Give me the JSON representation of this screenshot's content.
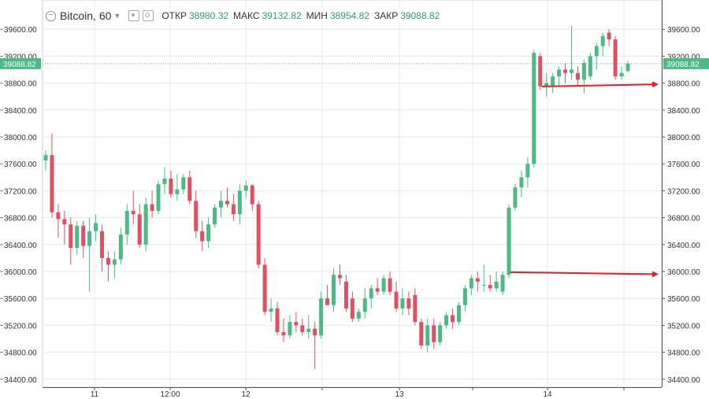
{
  "symbol": "Bitcoin",
  "interval": "60",
  "ohlc": [
    {
      "label": "ОТКР",
      "value": "38980.32"
    },
    {
      "label": "МАКС",
      "value": "39132.82"
    },
    {
      "label": "МИН",
      "value": "38954.82"
    },
    {
      "label": "ЗАКР",
      "value": "39088.82"
    }
  ],
  "colors": {
    "up": "#4bba84",
    "down": "#e05063",
    "arrow": "#e31e24",
    "price_tag": "#4bba84",
    "grid": "#e3e9ef",
    "axis_text": "#333333"
  },
  "chart_data": {
    "type": "candlestick",
    "y_range": [
      34200,
      39800
    ],
    "y_ticks": [
      "34400.00",
      "34800.00",
      "35200.00",
      "35600.00",
      "36000.00",
      "36400.00",
      "36800.00",
      "37200.00",
      "37600.00",
      "38000.00",
      "38400.00",
      "38800.00",
      "39200.00",
      "39600.00"
    ],
    "x_labels": [
      "11",
      "12:00",
      "12",
      "13",
      "14"
    ],
    "last_price": "39088.82",
    "grid": true,
    "candles": [
      {
        "o": 37650,
        "h": 37800,
        "l": 37500,
        "c": 37730
      },
      {
        "o": 37730,
        "h": 38050,
        "l": 36800,
        "c": 36880
      },
      {
        "o": 36880,
        "h": 37000,
        "l": 36500,
        "c": 36780
      },
      {
        "o": 36780,
        "h": 36900,
        "l": 36400,
        "c": 36700
      },
      {
        "o": 36700,
        "h": 36800,
        "l": 36100,
        "c": 36350
      },
      {
        "o": 36350,
        "h": 36750,
        "l": 36250,
        "c": 36680
      },
      {
        "o": 36680,
        "h": 36750,
        "l": 36200,
        "c": 36380
      },
      {
        "o": 36380,
        "h": 36800,
        "l": 35700,
        "c": 36600
      },
      {
        "o": 36600,
        "h": 36850,
        "l": 36450,
        "c": 36720
      },
      {
        "o": 36600,
        "h": 36700,
        "l": 36000,
        "c": 36200
      },
      {
        "o": 36200,
        "h": 36300,
        "l": 35850,
        "c": 36100
      },
      {
        "o": 36100,
        "h": 36300,
        "l": 35900,
        "c": 36180
      },
      {
        "o": 36180,
        "h": 36650,
        "l": 36100,
        "c": 36550
      },
      {
        "o": 36550,
        "h": 37000,
        "l": 36400,
        "c": 36900
      },
      {
        "o": 36900,
        "h": 37200,
        "l": 36700,
        "c": 36850
      },
      {
        "o": 36850,
        "h": 37000,
        "l": 36350,
        "c": 36400
      },
      {
        "o": 36400,
        "h": 37100,
        "l": 36300,
        "c": 37000
      },
      {
        "o": 37000,
        "h": 37200,
        "l": 36800,
        "c": 36900
      },
      {
        "o": 36900,
        "h": 37350,
        "l": 36850,
        "c": 37300
      },
      {
        "o": 37300,
        "h": 37550,
        "l": 37150,
        "c": 37380
      },
      {
        "o": 37380,
        "h": 37500,
        "l": 37100,
        "c": 37150
      },
      {
        "o": 37150,
        "h": 37450,
        "l": 37050,
        "c": 37220
      },
      {
        "o": 37220,
        "h": 37450,
        "l": 37150,
        "c": 37400
      },
      {
        "o": 37400,
        "h": 37500,
        "l": 37000,
        "c": 37050
      },
      {
        "o": 37050,
        "h": 37200,
        "l": 36500,
        "c": 36600
      },
      {
        "o": 36600,
        "h": 36750,
        "l": 36300,
        "c": 36450
      },
      {
        "o": 36450,
        "h": 36800,
        "l": 36350,
        "c": 36700
      },
      {
        "o": 36700,
        "h": 37000,
        "l": 36650,
        "c": 36950
      },
      {
        "o": 36950,
        "h": 37200,
        "l": 36800,
        "c": 37050
      },
      {
        "o": 37050,
        "h": 37250,
        "l": 36950,
        "c": 37000
      },
      {
        "o": 37000,
        "h": 37150,
        "l": 36750,
        "c": 36850
      },
      {
        "o": 36850,
        "h": 37300,
        "l": 36700,
        "c": 37200
      },
      {
        "o": 37200,
        "h": 37350,
        "l": 37100,
        "c": 37280
      },
      {
        "o": 37280,
        "h": 37300,
        "l": 36900,
        "c": 37000
      },
      {
        "o": 37000,
        "h": 37050,
        "l": 36050,
        "c": 36100
      },
      {
        "o": 36100,
        "h": 36200,
        "l": 35350,
        "c": 35400
      },
      {
        "o": 35400,
        "h": 35600,
        "l": 35250,
        "c": 35450
      },
      {
        "o": 35450,
        "h": 35550,
        "l": 35050,
        "c": 35100
      },
      {
        "o": 35100,
        "h": 35300,
        "l": 34950,
        "c": 35050
      },
      {
        "o": 35050,
        "h": 35350,
        "l": 35000,
        "c": 35250
      },
      {
        "o": 35250,
        "h": 35400,
        "l": 35100,
        "c": 35200
      },
      {
        "o": 35200,
        "h": 35300,
        "l": 35050,
        "c": 35100
      },
      {
        "o": 35100,
        "h": 35350,
        "l": 35000,
        "c": 35150
      },
      {
        "o": 35150,
        "h": 35250,
        "l": 34550,
        "c": 35050
      },
      {
        "o": 35050,
        "h": 35700,
        "l": 35000,
        "c": 35600
      },
      {
        "o": 35600,
        "h": 35800,
        "l": 35500,
        "c": 35500
      },
      {
        "o": 35500,
        "h": 36050,
        "l": 35400,
        "c": 35950
      },
      {
        "o": 35950,
        "h": 36100,
        "l": 35800,
        "c": 35900
      },
      {
        "o": 35850,
        "h": 35950,
        "l": 35400,
        "c": 35450
      },
      {
        "o": 35600,
        "h": 35700,
        "l": 35250,
        "c": 35300
      },
      {
        "o": 35300,
        "h": 35450,
        "l": 35250,
        "c": 35400
      },
      {
        "o": 35400,
        "h": 35750,
        "l": 35300,
        "c": 35600
      },
      {
        "o": 35600,
        "h": 35800,
        "l": 35450,
        "c": 35750
      },
      {
        "o": 35750,
        "h": 35900,
        "l": 35650,
        "c": 35700
      },
      {
        "o": 35700,
        "h": 35950,
        "l": 35650,
        "c": 35900
      },
      {
        "o": 35900,
        "h": 36000,
        "l": 35650,
        "c": 35700
      },
      {
        "o": 35700,
        "h": 35850,
        "l": 35400,
        "c": 35450
      },
      {
        "o": 35450,
        "h": 35750,
        "l": 35350,
        "c": 35600
      },
      {
        "o": 35600,
        "h": 35700,
        "l": 35350,
        "c": 35450
      },
      {
        "o": 35650,
        "h": 35750,
        "l": 35200,
        "c": 35250
      },
      {
        "o": 35250,
        "h": 35300,
        "l": 34850,
        "c": 34900
      },
      {
        "o": 34900,
        "h": 35300,
        "l": 34800,
        "c": 35200
      },
      {
        "o": 35200,
        "h": 35300,
        "l": 34850,
        "c": 34950
      },
      {
        "o": 34950,
        "h": 35250,
        "l": 34900,
        "c": 35200
      },
      {
        "o": 35200,
        "h": 35400,
        "l": 35150,
        "c": 35350
      },
      {
        "o": 35350,
        "h": 35450,
        "l": 35150,
        "c": 35250
      },
      {
        "o": 35250,
        "h": 35550,
        "l": 35200,
        "c": 35500
      },
      {
        "o": 35500,
        "h": 35800,
        "l": 35400,
        "c": 35750
      },
      {
        "o": 35750,
        "h": 35950,
        "l": 35650,
        "c": 35900
      },
      {
        "o": 35900,
        "h": 36000,
        "l": 35700,
        "c": 35850
      },
      {
        "o": 35800,
        "h": 36100,
        "l": 35700,
        "c": 35800
      },
      {
        "o": 35800,
        "h": 35950,
        "l": 35700,
        "c": 35750
      },
      {
        "o": 35750,
        "h": 36000,
        "l": 35700,
        "c": 35850
      },
      {
        "o": 35700,
        "h": 36000,
        "l": 35650,
        "c": 35950
      },
      {
        "o": 35950,
        "h": 37000,
        "l": 35900,
        "c": 36950
      },
      {
        "o": 36950,
        "h": 37300,
        "l": 36900,
        "c": 37250
      },
      {
        "o": 37250,
        "h": 37500,
        "l": 37100,
        "c": 37400
      },
      {
        "o": 37400,
        "h": 37700,
        "l": 37250,
        "c": 37600
      },
      {
        "o": 37600,
        "h": 39300,
        "l": 37550,
        "c": 39250
      },
      {
        "o": 39200,
        "h": 39250,
        "l": 38700,
        "c": 38750
      },
      {
        "o": 38750,
        "h": 38950,
        "l": 38600,
        "c": 38800
      },
      {
        "o": 38750,
        "h": 38950,
        "l": 38650,
        "c": 38900
      },
      {
        "o": 38900,
        "h": 39050,
        "l": 38750,
        "c": 39000
      },
      {
        "o": 39000,
        "h": 39100,
        "l": 38800,
        "c": 38950
      },
      {
        "o": 38950,
        "h": 39650,
        "l": 38850,
        "c": 39000
      },
      {
        "o": 38950,
        "h": 39050,
        "l": 38750,
        "c": 38850
      },
      {
        "o": 38850,
        "h": 39150,
        "l": 38650,
        "c": 39100
      },
      {
        "o": 38900,
        "h": 39250,
        "l": 38850,
        "c": 39200
      },
      {
        "o": 39200,
        "h": 39400,
        "l": 39000,
        "c": 39350
      },
      {
        "o": 39350,
        "h": 39550,
        "l": 39200,
        "c": 39500
      },
      {
        "o": 39550,
        "h": 39600,
        "l": 39350,
        "c": 39450
      },
      {
        "o": 39450,
        "h": 39500,
        "l": 38850,
        "c": 38900
      },
      {
        "o": 38900,
        "h": 39050,
        "l": 38850,
        "c": 38950
      },
      {
        "o": 38980,
        "h": 39133,
        "l": 38955,
        "c": 39089
      }
    ],
    "arrows": [
      {
        "start_candle": 74,
        "y_start": 35990,
        "y_end": 35960
      },
      {
        "start_candle": 79,
        "y_start": 38750,
        "y_end": 38780
      }
    ]
  }
}
